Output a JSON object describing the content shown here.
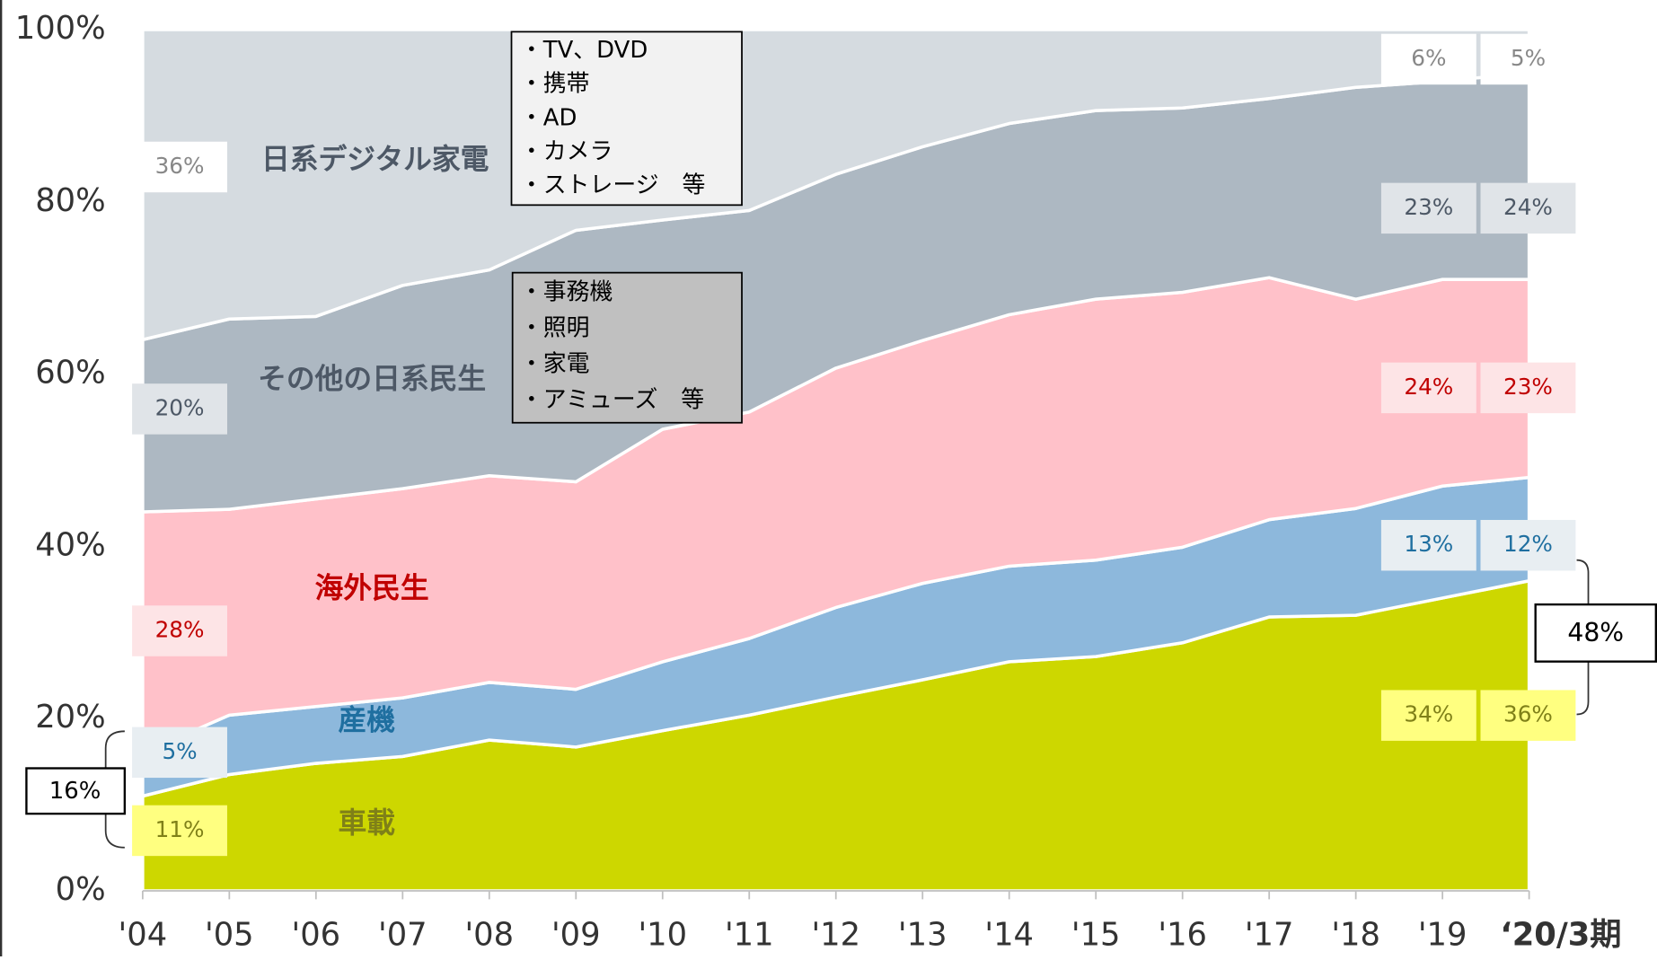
{
  "chart_data": {
    "type": "stacked_area",
    "categories": [
      "'04",
      "'05",
      "'06",
      "'07",
      "'08",
      "'09",
      "'10",
      "'11",
      "'12",
      "'13",
      "'14",
      "'15",
      "'16",
      "'17",
      "'18",
      "'19",
      "‘20/3期"
    ],
    "ylim": [
      0,
      100
    ],
    "yticks": [
      {
        "value": 0,
        "label": "0%"
      },
      {
        "value": 20,
        "label": "20%"
      },
      {
        "value": 40,
        "label": "40%"
      },
      {
        "value": 60,
        "label": "60%"
      },
      {
        "value": 80,
        "label": "80%"
      },
      {
        "value": 100,
        "label": "100%"
      }
    ],
    "series": [
      {
        "name": "車載",
        "color": "#cdd700",
        "text_color": "#7f8018",
        "values": [
          11,
          13.5,
          14.8,
          15.6,
          17.5,
          16.7,
          18.6,
          20.4,
          22.5,
          24.5,
          26.6,
          27.2,
          28.8,
          31.8,
          32.0,
          34,
          36
        ],
        "value_labels": [
          "11%",
          null,
          null,
          null,
          null,
          null,
          null,
          null,
          null,
          null,
          null,
          null,
          null,
          null,
          null,
          "34%",
          "36%"
        ]
      },
      {
        "name": "産機",
        "color": "#8db8dc",
        "text_color": "#1f6fa0",
        "values": [
          5,
          6.9,
          6.6,
          6.8,
          6.7,
          6.7,
          8.0,
          8.9,
          10.4,
          11.2,
          11.1,
          11.2,
          11.1,
          11.3,
          12.4,
          13,
          12
        ],
        "value_labels": [
          "5%",
          null,
          null,
          null,
          null,
          null,
          null,
          null,
          null,
          null,
          null,
          null,
          null,
          null,
          null,
          "13%",
          "12%"
        ]
      },
      {
        "name": "海外民生",
        "color": "#ffc1c9",
        "text_color": "#c00000",
        "values": [
          28,
          23.9,
          24.1,
          24.3,
          24.0,
          24.1,
          27.0,
          26.3,
          27.8,
          28.2,
          29.2,
          30.3,
          29.6,
          28.1,
          24.3,
          24,
          23
        ],
        "value_labels": [
          "28%",
          null,
          null,
          null,
          null,
          null,
          null,
          null,
          null,
          null,
          null,
          null,
          null,
          null,
          null,
          "24%",
          "23%"
        ]
      },
      {
        "name": "その他の日系民生",
        "color": "#adb8c2",
        "text_color": "#4d5866",
        "values": [
          20,
          22.1,
          21.2,
          23.6,
          23.9,
          29.2,
          24.3,
          23.4,
          22.5,
          22.5,
          22.2,
          21.9,
          21.4,
          20.8,
          24.6,
          23,
          24
        ],
        "value_labels": [
          "20%",
          null,
          null,
          null,
          null,
          null,
          null,
          null,
          null,
          null,
          null,
          null,
          null,
          null,
          null,
          "23%",
          "24%"
        ]
      },
      {
        "name": "日系デジタル家電",
        "color": "#d5dbe0",
        "text_color": "#4d5866",
        "values": [
          36,
          33.6,
          33.3,
          29.7,
          27.9,
          23.3,
          22.1,
          21.0,
          16.8,
          13.6,
          10.9,
          9.4,
          9.1,
          8.0,
          6.7,
          6,
          5
        ],
        "value_labels": [
          "36%",
          null,
          null,
          null,
          null,
          null,
          null,
          null,
          null,
          null,
          null,
          null,
          null,
          null,
          null,
          "6%",
          "5%"
        ]
      }
    ],
    "callouts": [
      [
        "・TV、DVD",
        "・携帯",
        "・AD",
        "・カメラ",
        "・ストレージ　等"
      ],
      [
        "・事務機",
        "・照明",
        "・家電",
        "・アミューズ　等"
      ]
    ],
    "annotations": [
      "16%",
      "48%"
    ]
  }
}
